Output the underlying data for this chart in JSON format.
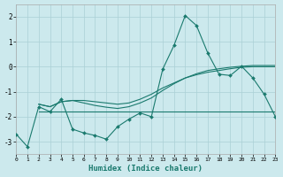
{
  "xlabel": "Humidex (Indice chaleur)",
  "bg_color": "#cce9ed",
  "grid_color": "#aad0d6",
  "line_color": "#1a7a6e",
  "xlim": [
    0,
    23
  ],
  "ylim": [
    -3.5,
    2.5
  ],
  "yticks": [
    -3,
    -2,
    -1,
    0,
    1,
    2
  ],
  "xticks": [
    0,
    1,
    2,
    3,
    4,
    5,
    6,
    7,
    8,
    9,
    10,
    11,
    12,
    13,
    14,
    15,
    16,
    17,
    18,
    19,
    20,
    21,
    22,
    23
  ],
  "line1_x": [
    0,
    1,
    2,
    3,
    4,
    5,
    6,
    7,
    8,
    9,
    10,
    11,
    12,
    13,
    14,
    15,
    16,
    17,
    18,
    19,
    20,
    21,
    22,
    23
  ],
  "line1_y": [
    -2.7,
    -3.2,
    -1.6,
    -1.8,
    -1.3,
    -2.5,
    -2.65,
    -2.75,
    -2.9,
    -2.4,
    -2.1,
    -1.85,
    -2.0,
    -0.1,
    0.85,
    2.05,
    1.65,
    0.55,
    -0.3,
    -0.35,
    0.02,
    -0.45,
    -1.1,
    -2.0
  ],
  "line2_x": [
    2,
    3,
    4,
    5,
    6,
    13,
    14,
    15,
    16,
    17,
    18,
    19,
    20,
    21,
    22,
    23
  ],
  "line2_y": [
    -1.8,
    -1.8,
    -1.8,
    -1.8,
    -1.8,
    -1.8,
    -1.8,
    -1.8,
    -1.8,
    -1.8,
    -1.8,
    -1.8,
    -1.8,
    -1.8,
    -1.8,
    -1.8
  ],
  "line3_x": [
    2,
    3,
    4,
    5,
    6,
    7,
    8,
    9,
    10,
    11,
    12,
    13,
    14,
    15,
    16,
    17,
    18,
    19,
    20,
    21,
    22,
    23
  ],
  "line3_y": [
    -1.5,
    -1.6,
    -1.4,
    -1.35,
    -1.35,
    -1.4,
    -1.45,
    -1.5,
    -1.45,
    -1.3,
    -1.1,
    -0.85,
    -0.65,
    -0.45,
    -0.32,
    -0.22,
    -0.15,
    -0.08,
    -0.02,
    0.0,
    0.0,
    0.0
  ],
  "line4_x": [
    2,
    3,
    4,
    5,
    6,
    7,
    8,
    9,
    10,
    11,
    12,
    13,
    14,
    15,
    16,
    17,
    18,
    19,
    20,
    21,
    22,
    23
  ],
  "line4_y": [
    -1.5,
    -1.6,
    -1.4,
    -1.35,
    -1.45,
    -1.55,
    -1.62,
    -1.67,
    -1.6,
    -1.45,
    -1.25,
    -0.95,
    -0.68,
    -0.45,
    -0.28,
    -0.15,
    -0.08,
    -0.02,
    0.02,
    0.05,
    0.05,
    0.05
  ]
}
